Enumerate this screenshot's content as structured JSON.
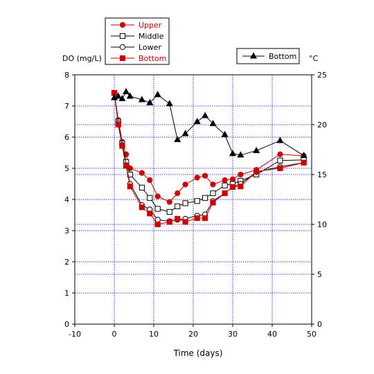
{
  "chart_data": {
    "type": "line",
    "xlabel": "Time (days)",
    "ylabel": "DO (mg/L)",
    "y2label": "°C",
    "xlim": [
      -10,
      50
    ],
    "ylim": [
      0,
      8
    ],
    "y2lim": [
      0,
      25
    ],
    "grid": true,
    "x_ticks": [
      "-10",
      "0",
      "10",
      "20",
      "30",
      "40",
      "50"
    ],
    "y_ticks": [
      "0",
      "1",
      "2",
      "3",
      "4",
      "5",
      "6",
      "7",
      "8"
    ],
    "y2_ticks": [
      "0",
      "5",
      "10",
      "15",
      "20",
      "25"
    ],
    "legend_left": {
      "placement": "top-left",
      "entries": [
        "Upper",
        "Middle",
        "Lower",
        "Bottom"
      ]
    },
    "legend_right": {
      "placement": "top-right",
      "entries": [
        "Bottom"
      ]
    },
    "colors": {
      "red": "#cc0000",
      "black": "#000000",
      "grid": "#0000cc"
    },
    "series": [
      {
        "name": "Upper",
        "axis": "left",
        "color": "#cc0000",
        "marker": "circle-filled",
        "x": [
          0,
          1,
          2,
          3,
          4,
          7,
          9,
          11,
          14,
          16,
          18,
          21,
          23,
          25,
          28,
          30,
          32,
          36,
          42,
          48
        ],
        "y": [
          7.42,
          6.55,
          5.85,
          5.45,
          5.0,
          4.85,
          4.62,
          4.1,
          3.92,
          4.2,
          4.48,
          4.7,
          4.76,
          4.48,
          4.62,
          4.65,
          4.8,
          4.95,
          5.45,
          5.4
        ]
      },
      {
        "name": "Middle",
        "axis": "left",
        "color": "#000000",
        "marker": "square-open",
        "x": [
          0,
          1,
          2,
          3,
          4,
          7,
          9,
          11,
          14,
          16,
          18,
          21,
          23,
          25,
          28,
          30,
          32,
          36,
          42,
          48
        ],
        "y": [
          7.42,
          6.5,
          5.8,
          5.2,
          4.8,
          4.38,
          4.05,
          3.7,
          3.6,
          3.78,
          3.88,
          3.95,
          4.05,
          4.2,
          4.45,
          4.5,
          4.6,
          4.8,
          5.25,
          5.27
        ]
      },
      {
        "name": "Lower",
        "axis": "left",
        "color": "#000000",
        "marker": "circle-open",
        "x": [
          0,
          1,
          2,
          3,
          4,
          7,
          9,
          11,
          14,
          16,
          18,
          21,
          23,
          25,
          28,
          30,
          32,
          36,
          42,
          48
        ],
        "y": [
          7.42,
          6.45,
          5.75,
          5.1,
          4.5,
          3.82,
          3.68,
          3.35,
          3.3,
          3.35,
          3.38,
          3.48,
          3.52,
          3.95,
          4.2,
          4.4,
          4.5,
          4.88,
          5.05,
          5.18
        ]
      },
      {
        "name": "Bottom",
        "axis": "left",
        "color": "#cc0000",
        "marker": "square-filled",
        "x": [
          0,
          1,
          2,
          3,
          4,
          7,
          9,
          11,
          14,
          16,
          18,
          21,
          23,
          25,
          28,
          30,
          32,
          36,
          42,
          48
        ],
        "y": [
          7.42,
          6.4,
          5.72,
          5.08,
          4.42,
          3.75,
          3.55,
          3.2,
          3.28,
          3.38,
          3.28,
          3.4,
          3.4,
          3.9,
          4.2,
          4.4,
          4.42,
          4.9,
          5.0,
          5.18
        ]
      },
      {
        "name": "Bottom",
        "axis": "right",
        "color": "#000000",
        "marker": "triangle-filled",
        "x": [
          0,
          1,
          2,
          3,
          4,
          7,
          9,
          11,
          14,
          16,
          18,
          21,
          23,
          25,
          28,
          30,
          32,
          36,
          42,
          48
        ],
        "y": [
          22.7,
          22.85,
          22.6,
          23.3,
          22.85,
          22.5,
          22.2,
          23.0,
          22.1,
          18.5,
          19.1,
          20.3,
          20.9,
          20.1,
          19.0,
          17.1,
          16.95,
          17.4,
          18.4,
          16.9
        ]
      }
    ]
  }
}
